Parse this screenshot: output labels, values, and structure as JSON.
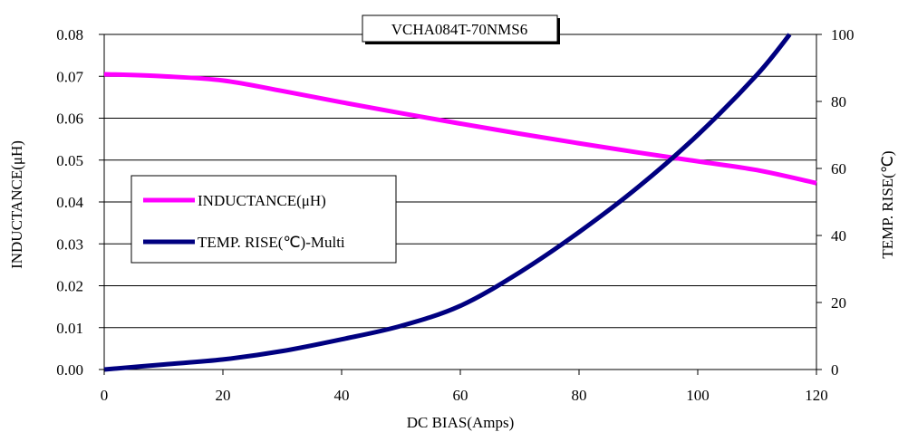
{
  "chart_data": {
    "type": "line",
    "title": "VCHA084T-70NMS6",
    "xlabel": "DC BIAS(Amps)",
    "ylabel_left": "INDUCTANCE(μH)",
    "ylabel_right": "TEMP. RISE(℃)",
    "xlim": [
      0,
      120
    ],
    "ylim_left": [
      0,
      0.08
    ],
    "ylim_right": [
      0,
      100
    ],
    "x_ticks": [
      "0",
      "20",
      "40",
      "60",
      "80",
      "100",
      "120"
    ],
    "y_left_ticks": [
      "0.00",
      "0.01",
      "0.02",
      "0.03",
      "0.04",
      "0.05",
      "0.06",
      "0.07",
      "0.08"
    ],
    "y_right_ticks": [
      "0",
      "20",
      "40",
      "60",
      "80",
      "100"
    ],
    "grid": "horizontal",
    "legend_position": "left-middle",
    "series": [
      {
        "name": "INDUCTANCE(μH)",
        "axis": "left",
        "color": "#ff00ff",
        "x": [
          0,
          10,
          20,
          30,
          40,
          50,
          60,
          70,
          80,
          90,
          100,
          110,
          120
        ],
        "y": [
          0.0705,
          0.07,
          0.069,
          0.0665,
          0.0638,
          0.0612,
          0.0587,
          0.0563,
          0.054,
          0.0518,
          0.0497,
          0.0476,
          0.0445
        ]
      },
      {
        "name": "TEMP. RISE(℃)-Multi",
        "axis": "right",
        "color": "#000080",
        "x": [
          0,
          10,
          20,
          30,
          40,
          50,
          60,
          70,
          80,
          90,
          100,
          110,
          115.5
        ],
        "y": [
          0,
          1.5,
          3,
          5.5,
          9,
          13,
          19,
          29,
          41,
          54.5,
          70,
          88,
          100
        ]
      }
    ]
  }
}
